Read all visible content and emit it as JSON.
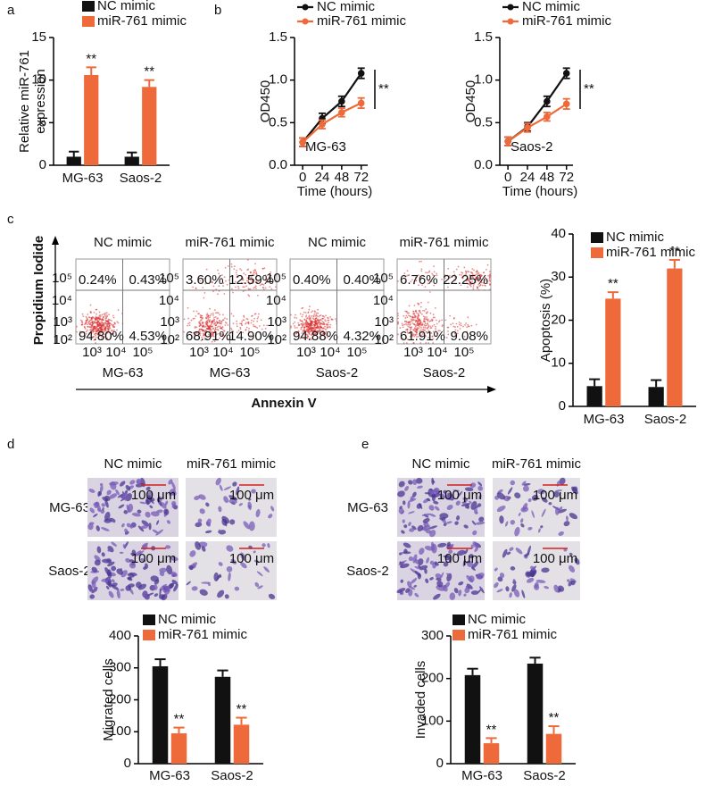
{
  "panel_labels": [
    "a",
    "b",
    "c",
    "d",
    "e"
  ],
  "chart_data": [
    {
      "type": "bar",
      "categories": [
        "MG-63",
        "Saos-2"
      ],
      "ylabel": [
        "Relative miR-761",
        "expression"
      ],
      "ylim": [
        0,
        15
      ],
      "yticks": [
        0,
        5,
        10,
        15
      ],
      "series": [
        {
          "name": "NC mimic",
          "color": "#111111",
          "values": [
            1.0,
            1.0
          ],
          "errors": [
            0.6,
            0.5
          ]
        },
        {
          "name": "miR-761 mimic",
          "color": "#ee6a3a",
          "values": [
            10.6,
            9.2
          ],
          "errors": [
            0.9,
            0.8
          ],
          "significance": [
            "**",
            "**"
          ]
        }
      ]
    },
    {
      "type": "line",
      "label": "MG-63",
      "x": [
        0,
        24,
        48,
        72
      ],
      "xlim": [
        -10,
        80
      ],
      "xticks": [
        0,
        24,
        48,
        72
      ],
      "xlabel": "Time (hours)",
      "ylabel": "OD450",
      "ylim": [
        0,
        1.5
      ],
      "yticks": [
        {
          "value": 0,
          "label": "0.0"
        },
        {
          "value": 0.5,
          "label": "0.5"
        },
        {
          "value": 1,
          "label": "1.0"
        },
        {
          "value": 1.5,
          "label": "1.5"
        }
      ],
      "significance": "**",
      "series": [
        {
          "name": "NC mimic",
          "color": "#111111",
          "values": [
            0.27,
            0.55,
            0.75,
            1.08
          ],
          "errors": [
            0.05,
            0.06,
            0.06,
            0.06
          ]
        },
        {
          "name": "miR-761 mimic",
          "color": "#ee6a3a",
          "values": [
            0.27,
            0.48,
            0.62,
            0.73
          ],
          "errors": [
            0.05,
            0.05,
            0.05,
            0.06
          ]
        }
      ]
    },
    {
      "type": "line",
      "label": "Saos-2",
      "x": [
        0,
        24,
        48,
        72
      ],
      "xlim": [
        -10,
        80
      ],
      "xticks": [
        0,
        24,
        48,
        72
      ],
      "xlabel": "Time (hours)",
      "ylabel": "OD450",
      "ylim": [
        0,
        1.5
      ],
      "yticks": [
        {
          "value": 0,
          "label": "0.0"
        },
        {
          "value": 0.5,
          "label": "0.5"
        },
        {
          "value": 1,
          "label": "1.0"
        },
        {
          "value": 1.5,
          "label": "1.5"
        }
      ],
      "significance": "**",
      "series": [
        {
          "name": "NC mimic",
          "color": "#111111",
          "values": [
            0.28,
            0.45,
            0.75,
            1.08
          ],
          "errors": [
            0.05,
            0.05,
            0.06,
            0.06
          ]
        },
        {
          "name": "miR-761 mimic",
          "color": "#ee6a3a",
          "values": [
            0.28,
            0.44,
            0.57,
            0.72
          ],
          "errors": [
            0.05,
            0.05,
            0.05,
            0.06
          ]
        }
      ]
    },
    {
      "type": "bar",
      "categories": [
        "MG-63",
        "Saos-2"
      ],
      "ylabel": "Apoptosis (%)",
      "ylim": [
        0,
        40
      ],
      "yticks": [
        0,
        10,
        20,
        30,
        40
      ],
      "series": [
        {
          "name": "NC mimic",
          "color": "#111111",
          "values": [
            4.7,
            4.5
          ],
          "errors": [
            1.6,
            1.6
          ]
        },
        {
          "name": "miR-761 mimic",
          "color": "#ee6a3a",
          "values": [
            25,
            32
          ],
          "errors": [
            1.5,
            2
          ],
          "significance": [
            "**",
            "**"
          ]
        }
      ]
    },
    {
      "type": "bar",
      "categories": [
        "MG-63",
        "Saos-2"
      ],
      "ylabel": "Migrated cells",
      "ylim": [
        0,
        400
      ],
      "yticks": [
        0,
        100,
        200,
        300,
        400
      ],
      "series": [
        {
          "name": "NC mimic",
          "color": "#111111",
          "values": [
            305,
            272
          ],
          "errors": [
            22,
            20
          ]
        },
        {
          "name": "miR-761 mimic",
          "color": "#ee6a3a",
          "values": [
            95,
            122
          ],
          "errors": [
            18,
            22
          ],
          "significance": [
            "**",
            "**"
          ]
        }
      ]
    },
    {
      "type": "bar",
      "categories": [
        "MG-63",
        "Saos-2"
      ],
      "ylabel": "Invaded cells",
      "ylim": [
        0,
        300
      ],
      "yticks": [
        0,
        100,
        200,
        300
      ],
      "series": [
        {
          "name": "NC mimic",
          "color": "#111111",
          "values": [
            208,
            235
          ],
          "errors": [
            15,
            14
          ]
        },
        {
          "name": "miR-761 mimic",
          "color": "#ee6a3a",
          "values": [
            48,
            70
          ],
          "errors": [
            12,
            18
          ],
          "significance": [
            "**",
            "**"
          ]
        }
      ]
    }
  ],
  "flow_cytometry": {
    "y_axis_label": "Propidium Iodide",
    "x_axis_label": "Annexin V",
    "y_ticks": [
      "10⁵",
      "10⁴",
      "10³",
      "10²"
    ],
    "x_ticks": [
      "10³",
      "10⁴",
      "10⁵"
    ],
    "plots": [
      {
        "title": "NC mimic",
        "cell_line": "MG-63",
        "quadrants": [
          "0.24%",
          "0.43%",
          "94.80%",
          "4.53%"
        ]
      },
      {
        "title": "miR-761 mimic",
        "cell_line": "MG-63",
        "quadrants": [
          "3.60%",
          "12.59%",
          "68.91%",
          "14.90%"
        ]
      },
      {
        "title": "NC mimic",
        "cell_line": "Saos-2",
        "quadrants": [
          "0.40%",
          "0.40%",
          "94.88%",
          "4.32%"
        ]
      },
      {
        "title": "miR-761 mimic",
        "cell_line": "Saos-2",
        "quadrants": [
          "6.76%",
          "22.25%",
          "61.91%",
          "9.08%"
        ]
      }
    ]
  },
  "micrographs": [
    {
      "columns": [
        "NC mimic",
        "miR-761 mimic"
      ],
      "rows": [
        "MG-63",
        "Saos-2"
      ],
      "scale_bar": "100 μm"
    },
    {
      "columns": [
        "NC mimic",
        "miR-761 mimic"
      ],
      "rows": [
        "MG-63",
        "Saos-2"
      ],
      "scale_bar": "100 μm"
    }
  ]
}
